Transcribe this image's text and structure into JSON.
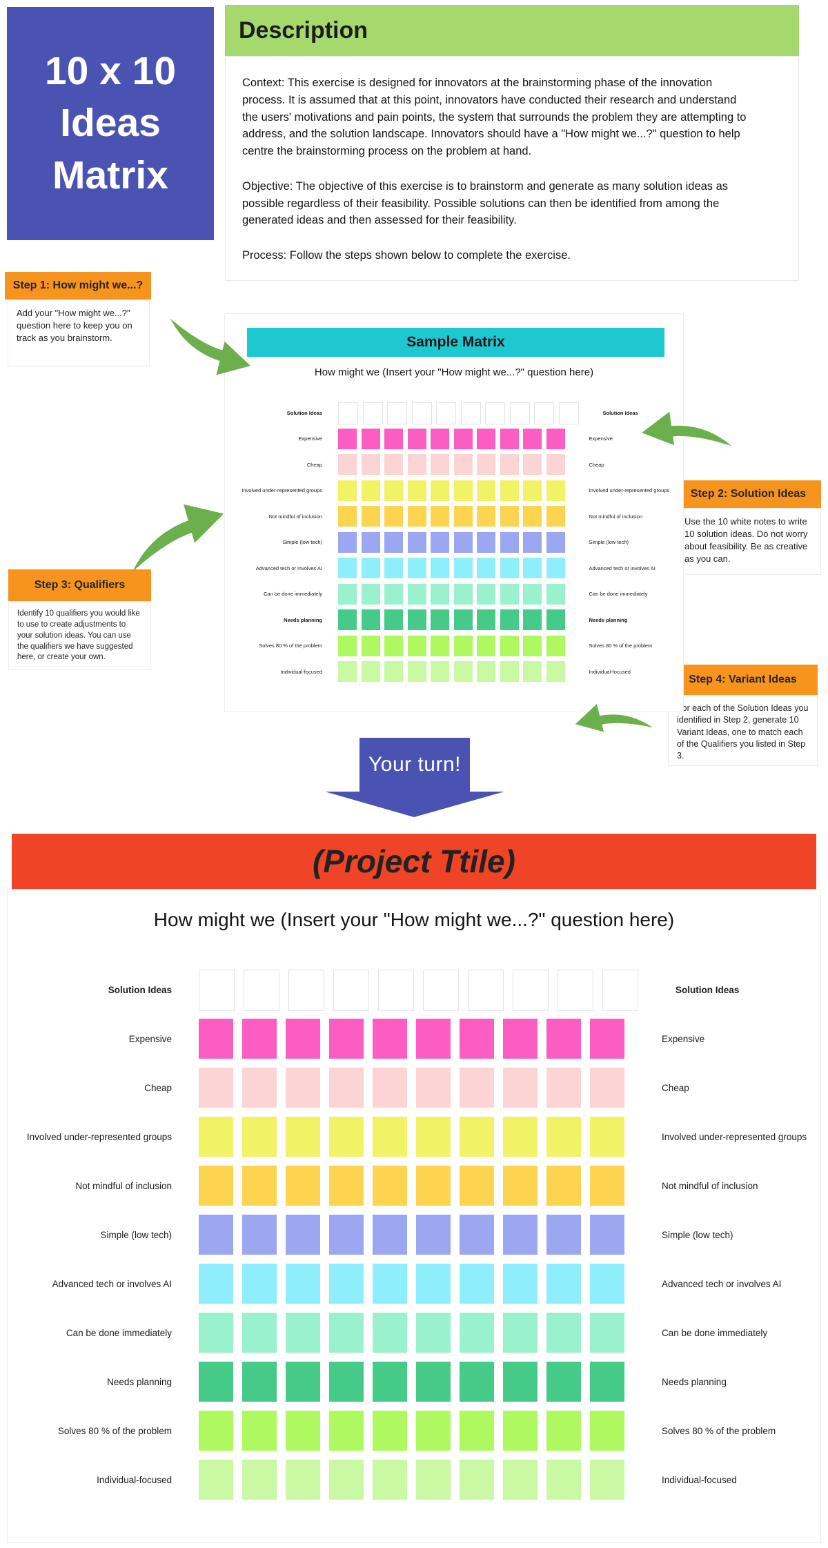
{
  "title_card": {
    "text": "10 x 10 Ideas Matrix"
  },
  "description": {
    "header": "Description",
    "paragraphs": [
      "Context: This exercise is designed for innovators at the brainstorming phase of the innovation process. It is assumed that at this point, innovators have conducted their research and understand the users' motivations and pain points, the system that surrounds the problem they are attempting to address, and the solution landscape. Innovators should have a \"How might we...?\" question to help centre the brainstorming process on the problem at hand.",
      "Objective: The objective of this exercise is to brainstorm and generate as many solution ideas as possible regardless of their feasibility. Possible solutions can then be identified from among the generated ideas and then assessed for their feasibility.",
      "Process: Follow the steps shown below to complete the exercise."
    ]
  },
  "steps": [
    {
      "label": "Step 1: How might we...?",
      "note": "Add your \"How might we...?\" question here to keep you on track as you brainstorm."
    },
    {
      "label": "Step 2: Solution Ideas",
      "note": "Use the 10 white notes to write 10 solution ideas. Do not worry about feasibility. Be as creative as you can."
    },
    {
      "label": "Step 3: Qualifiers",
      "note": "Identify 10 qualifiers you would like to use to create adjustments to your solution ideas. You can use the qualifiers we have suggested here, or create your own."
    },
    {
      "label": "Step 4: Variant Ideas",
      "note": "For each of the Solution Ideas you identified in Step 2, generate 10 Variant Ideas, one to match each of the Qualifiers you listed in Step 3."
    }
  ],
  "sample_matrix": {
    "header": "Sample Matrix",
    "question": "How might we (Insert your \"How might we...?\" question here)"
  },
  "your_turn": {
    "text": "Your turn!"
  },
  "project": {
    "title": "(Project Ttile)",
    "question": "How might we (Insert your \"How might we...?\" question here)"
  },
  "matrix": {
    "columns": 10,
    "rows": [
      {
        "label": "Solution Ideas",
        "color": "#ffffff",
        "bold": true,
        "outlined": true
      },
      {
        "label": "Expensive",
        "color": "#fb5dc3"
      },
      {
        "label": "Cheap",
        "color": "#fcd4d4"
      },
      {
        "label": "Involved under-represented groups",
        "color": "#f1f266"
      },
      {
        "label": "Not mindful of inclusion",
        "color": "#fdd44f"
      },
      {
        "label": "Simple (low tech)",
        "color": "#9ba8f1"
      },
      {
        "label": "Advanced tech or involves AI",
        "color": "#8feefc"
      },
      {
        "label": "Can be done immediately",
        "color": "#99f2cd"
      },
      {
        "label": "Needs planning",
        "color": "#46ca88",
        "sample_bold": true
      },
      {
        "label": "Solves 80 % of the problem",
        "color": "#aef95f"
      },
      {
        "label": "Individual-focused",
        "color": "#c9f9a2"
      }
    ]
  },
  "colors": {
    "blue": "#4a52b2",
    "green_header": "#a5d96e",
    "orange": "#f7941e",
    "cyan": "#1ec8d1",
    "red": "#f04426",
    "arrow": "#6cb04e"
  }
}
